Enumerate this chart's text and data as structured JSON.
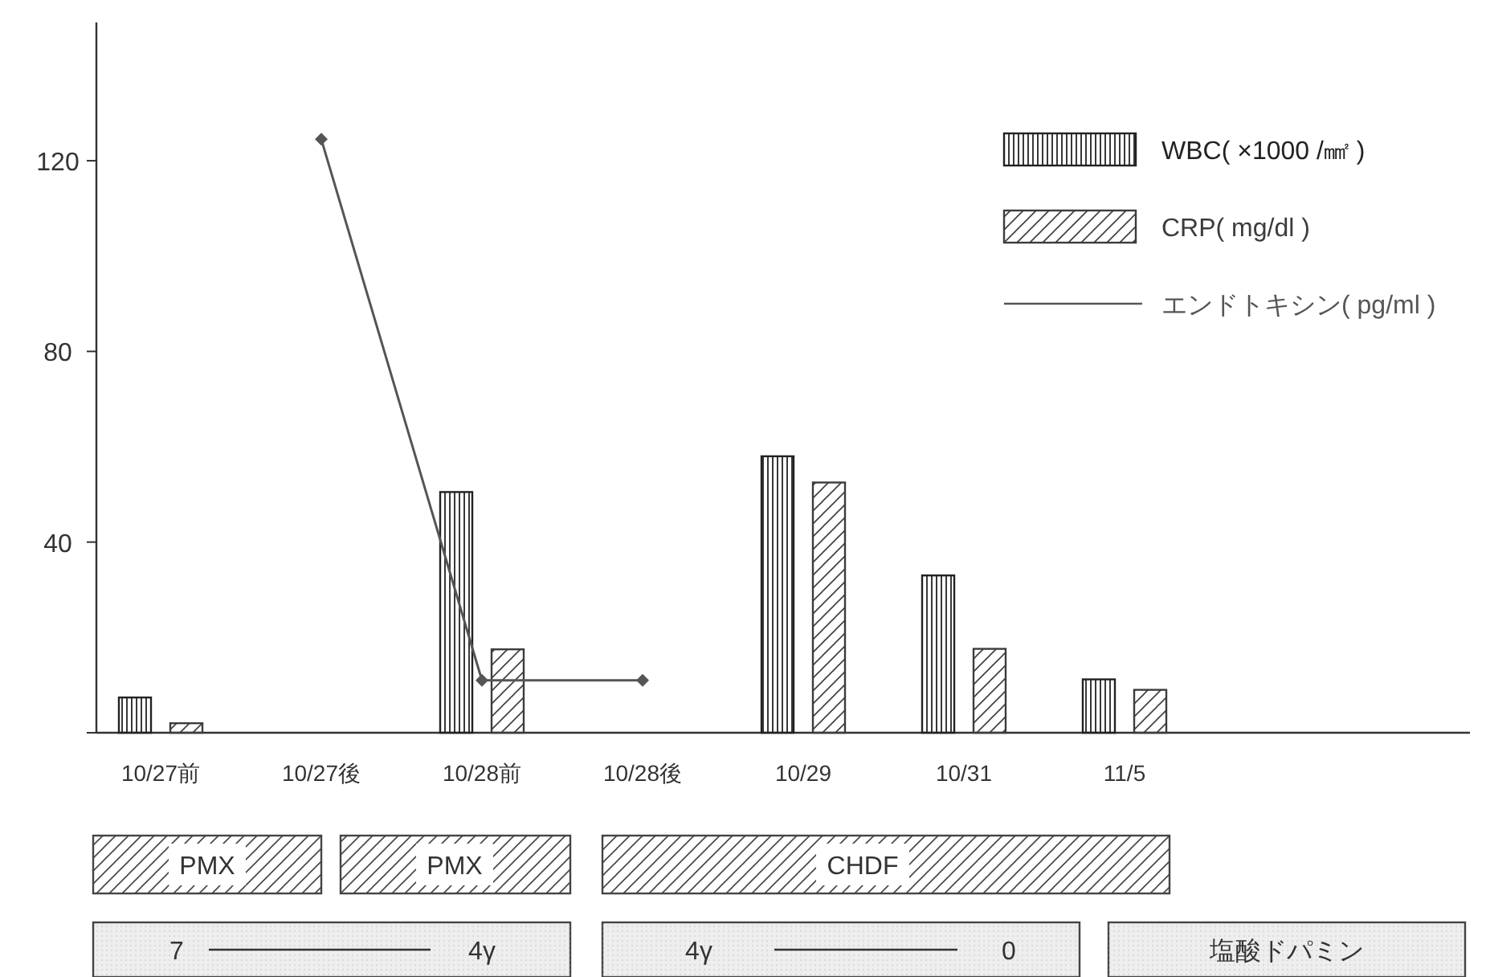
{
  "chart_data": {
    "type": "bar",
    "categories": [
      "10/27前",
      "10/27後",
      "10/28前",
      "10/28後",
      "10/29",
      "10/31",
      "11/5"
    ],
    "series": [
      {
        "name": "WBC( ×1000 /㎟ )",
        "color": "#222222",
        "values": [
          7.4,
          null,
          50.5,
          null,
          58,
          33,
          11.2
        ]
      },
      {
        "name": "CRP( mg/dl )",
        "color": "#3c3c3c",
        "values": [
          2,
          null,
          17.5,
          null,
          52.5,
          17.6,
          9
        ]
      },
      {
        "name": "エンドトキシン( pg/ml )",
        "type": "line",
        "color": "#555555",
        "marker": "diamond",
        "values": [
          null,
          124.5,
          11,
          11,
          null,
          null,
          null
        ]
      }
    ],
    "ylim": [
      0,
      149
    ],
    "yticks": [
      {
        "value": 0,
        "label": null
      },
      40,
      80,
      120
    ],
    "grid": false,
    "legend": "top right",
    "annotations": [
      "PMX",
      "PMX",
      "CHDF",
      "7",
      "4γ",
      "4γ",
      "0",
      "塩酸ドパミン"
    ]
  }
}
